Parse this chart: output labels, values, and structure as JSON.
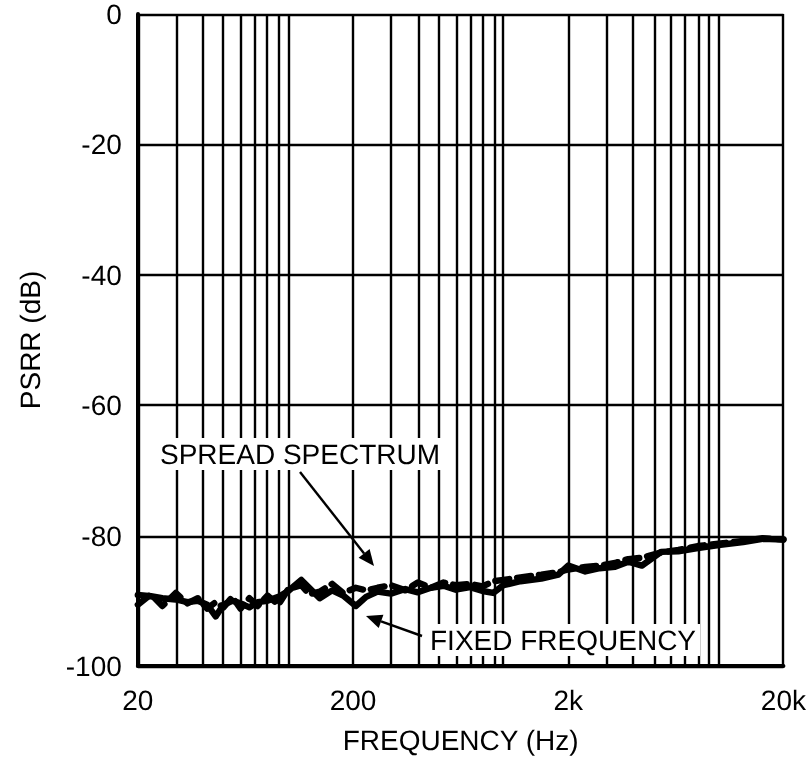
{
  "chart_data": {
    "type": "line",
    "xlabel": "FREQUENCY (Hz)",
    "ylabel": "PSRR (dB)",
    "log": "x",
    "grid": true,
    "marker": "none",
    "xlim": [
      20,
      20000
    ],
    "xticks": [
      20,
      200,
      {
        "value": 2000,
        "label": "2k"
      },
      {
        "value": 20000,
        "label": "20k"
      }
    ],
    "ylim": [
      -100,
      0
    ],
    "yticks": [
      -100,
      -80,
      -60,
      -40,
      -20,
      0
    ],
    "x": [
      20,
      23,
      26,
      30,
      34,
      38,
      42,
      46,
      50,
      55,
      60,
      66,
      72,
      80,
      90,
      100,
      115,
      125,
      140,
      160,
      180,
      206,
      230,
      260,
      300,
      350,
      400,
      460,
      527,
      600,
      700,
      800,
      896,
      1000,
      1200,
      1500,
      1800,
      2000,
      2400,
      2800,
      3300,
      3800,
      4400,
      5400,
      6500,
      8000,
      10200,
      13000,
      16000,
      20000
    ],
    "series": [
      {
        "color": "#000000",
        "line_style": "solid",
        "values": [
          -89.1,
          -89.3,
          -89.6,
          -89.8,
          -90.2,
          -90.0,
          -90.6,
          -92.4,
          -90.6,
          -90.0,
          -90.4,
          -91.0,
          -90.2,
          -90.0,
          -89.4,
          -88.5,
          -86.8,
          -88.0,
          -89.6,
          -88.4,
          -89.2,
          -90.8,
          -89.4,
          -88.6,
          -88.9,
          -88.2,
          -88.7,
          -88.0,
          -87.7,
          -88.3,
          -87.9,
          -88.5,
          -88.8,
          -87.6,
          -87.0,
          -86.6,
          -86.0,
          -84.6,
          -85.5,
          -85.0,
          -84.8,
          -84.0,
          -84.6,
          -82.5,
          -82.4,
          -81.9,
          -81.4,
          -81.0,
          -80.5,
          -80.6
        ]
      },
      {
        "color": "#000000",
        "line_style": "dashed",
        "values": [
          -90.6,
          -89.0,
          -90.8,
          -88.8,
          -90.4,
          -89.6,
          -91.2,
          -90.2,
          -91.0,
          -89.4,
          -91.2,
          -89.6,
          -90.8,
          -89.2,
          -90.6,
          -88.2,
          -87.6,
          -89.0,
          -88.6,
          -87.4,
          -88.8,
          -88.0,
          -88.4,
          -88.0,
          -87.6,
          -88.4,
          -87.2,
          -88.0,
          -87.2,
          -87.6,
          -87.4,
          -87.8,
          -87.0,
          -86.8,
          -86.4,
          -86.0,
          -85.6,
          -85.2,
          -84.8,
          -84.6,
          -84.2,
          -83.6,
          -83.4,
          -82.6,
          -82.2,
          -81.6,
          -81.2,
          -80.8,
          -80.4,
          -80.6
        ]
      }
    ],
    "annotations": [
      "SPREAD SPECTRUM",
      "FIXED FREQUENCY"
    ]
  }
}
